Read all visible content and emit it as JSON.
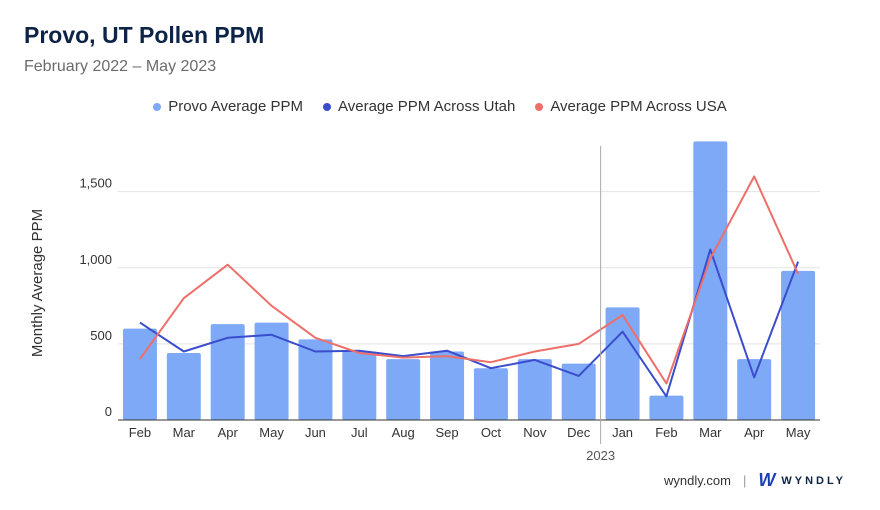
{
  "chart_data": {
    "type": "bar",
    "title": "Provo, UT Pollen PPM",
    "subtitle": "February 2022 – May 2023",
    "ylabel": "Monthly Average PPM",
    "xlabel": "",
    "categories": [
      "Feb",
      "Mar",
      "Apr",
      "May",
      "Jun",
      "Jul",
      "Aug",
      "Sep",
      "Oct",
      "Nov",
      "Dec",
      "Jan",
      "Feb",
      "Mar",
      "Apr",
      "May"
    ],
    "year_marker": {
      "label": "2023",
      "before_index": 11
    },
    "ylim": [
      0,
      1800
    ],
    "yticks": [
      0,
      500,
      1000,
      1500
    ],
    "ytick_labels": [
      "0",
      "500",
      "1,000",
      "1,500"
    ],
    "grid": true,
    "legend_position": "top",
    "series": [
      {
        "name": "Provo Average PPM",
        "kind": "bar",
        "color": "#7da9f7",
        "values": [
          600,
          440,
          630,
          640,
          530,
          450,
          400,
          450,
          340,
          400,
          370,
          740,
          160,
          1830,
          400,
          980
        ]
      },
      {
        "name": "Average PPM Across Utah",
        "kind": "line",
        "color": "#3a4dcc",
        "values": [
          640,
          450,
          540,
          560,
          450,
          455,
          420,
          455,
          340,
          395,
          290,
          580,
          155,
          1120,
          280,
          1040
        ]
      },
      {
        "name": "Average PPM Across USA",
        "kind": "line",
        "color": "#ee6f6a",
        "values": [
          400,
          800,
          1020,
          750,
          540,
          440,
          410,
          420,
          380,
          450,
          500,
          690,
          240,
          1060,
          1600,
          960
        ]
      }
    ]
  },
  "footer": {
    "site": "wyndly.com",
    "separator": "|",
    "brand_mark": "W",
    "brand": "WYNDLY"
  }
}
